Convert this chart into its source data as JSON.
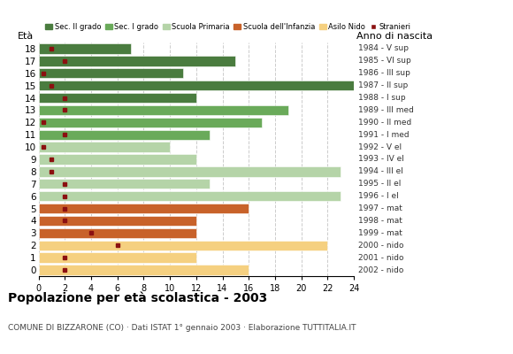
{
  "ages": [
    18,
    17,
    16,
    15,
    14,
    13,
    12,
    11,
    10,
    9,
    8,
    7,
    6,
    5,
    4,
    3,
    2,
    1,
    0
  ],
  "anno_nascita": [
    "1984 - V sup",
    "1985 - VI sup",
    "1986 - III sup",
    "1987 - II sup",
    "1988 - I sup",
    "1989 - III med",
    "1990 - II med",
    "1991 - I med",
    "1992 - V el",
    "1993 - IV el",
    "1994 - III el",
    "1995 - II el",
    "1996 - I el",
    "1997 - mat",
    "1998 - mat",
    "1999 - mat",
    "2000 - nido",
    "2001 - nido",
    "2002 - nido"
  ],
  "bar_values": [
    7,
    15,
    11,
    24,
    12,
    19,
    17,
    13,
    10,
    12,
    23,
    13,
    23,
    16,
    12,
    12,
    22,
    12,
    16
  ],
  "stranieri": [
    1,
    2,
    0.4,
    1,
    2,
    2,
    0.4,
    2,
    0.4,
    1,
    1,
    2,
    2,
    2,
    2,
    4,
    6,
    2,
    2
  ],
  "bar_colors": [
    "#4a7c3f",
    "#4a7c3f",
    "#4a7c3f",
    "#4a7c3f",
    "#4a7c3f",
    "#6aaa5a",
    "#6aaa5a",
    "#6aaa5a",
    "#b5d4a8",
    "#b5d4a8",
    "#b5d4a8",
    "#b5d4a8",
    "#b5d4a8",
    "#c8622a",
    "#c8622a",
    "#c8622a",
    "#f5d080",
    "#f5d080",
    "#f5d080"
  ],
  "stranieri_color": "#8b1010",
  "legend_labels": [
    "Sec. II grado",
    "Sec. I grado",
    "Scuola Primaria",
    "Scuola dell'Infanzia",
    "Asilo Nido",
    "Stranieri"
  ],
  "legend_colors": [
    "#4a7c3f",
    "#6aaa5a",
    "#b5d4a8",
    "#c8622a",
    "#f5d080",
    "#8b1010"
  ],
  "title": "Popolazione per età scolastica - 2003",
  "subtitle": "COMUNE DI BIZZARONE (CO) · Dati ISTAT 1° gennaio 2003 · Elaborazione TUTTITALIA.IT",
  "eta_label": "Età",
  "anno_label": "Anno di nascita",
  "xlim": [
    0,
    24
  ],
  "xticks": [
    0,
    2,
    4,
    6,
    8,
    10,
    12,
    14,
    16,
    18,
    20,
    22,
    24
  ],
  "bg_color": "#ffffff",
  "grid_color": "#cccccc"
}
